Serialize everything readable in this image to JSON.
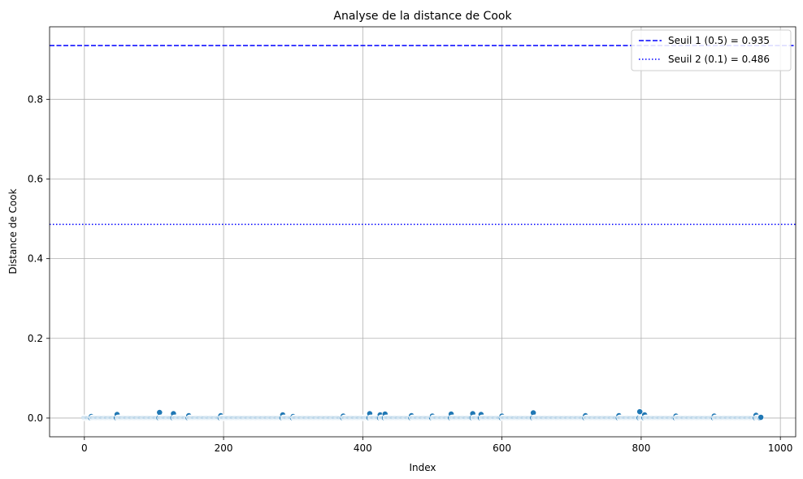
{
  "chart_data": {
    "type": "scatter",
    "title": "Analyse de la distance de Cook",
    "xlabel": "Index",
    "ylabel": "Distance de Cook",
    "xlim": [
      -50,
      1022
    ],
    "ylim": [
      -0.047,
      0.982
    ],
    "xticks": [
      0,
      200,
      400,
      600,
      800,
      1000
    ],
    "xtick_labels": [
      "0",
      "200",
      "400",
      "600",
      "800",
      "1000"
    ],
    "yticks": [
      0.0,
      0.2,
      0.4,
      0.6,
      0.8
    ],
    "ytick_labels": [
      "0.0",
      "0.2",
      "0.4",
      "0.6",
      "0.8"
    ],
    "grid": true,
    "legend_position": "top-right",
    "point_color": "#1f77b4",
    "n_points": 973,
    "baseline_value": 0.0005,
    "notable_points": [
      {
        "x": 10,
        "y": 0.004
      },
      {
        "x": 47,
        "y": 0.009
      },
      {
        "x": 108,
        "y": 0.014
      },
      {
        "x": 128,
        "y": 0.011
      },
      {
        "x": 150,
        "y": 0.006
      },
      {
        "x": 196,
        "y": 0.006
      },
      {
        "x": 285,
        "y": 0.008
      },
      {
        "x": 300,
        "y": 0.004
      },
      {
        "x": 372,
        "y": 0.005
      },
      {
        "x": 410,
        "y": 0.011
      },
      {
        "x": 425,
        "y": 0.008
      },
      {
        "x": 432,
        "y": 0.01
      },
      {
        "x": 470,
        "y": 0.006
      },
      {
        "x": 500,
        "y": 0.005
      },
      {
        "x": 527,
        "y": 0.01
      },
      {
        "x": 558,
        "y": 0.011
      },
      {
        "x": 570,
        "y": 0.009
      },
      {
        "x": 600,
        "y": 0.005
      },
      {
        "x": 645,
        "y": 0.013
      },
      {
        "x": 720,
        "y": 0.006
      },
      {
        "x": 768,
        "y": 0.006
      },
      {
        "x": 798,
        "y": 0.016
      },
      {
        "x": 805,
        "y": 0.008
      },
      {
        "x": 850,
        "y": 0.005
      },
      {
        "x": 905,
        "y": 0.005
      },
      {
        "x": 965,
        "y": 0.007
      },
      {
        "x": 972,
        "y": 0.002
      }
    ],
    "thresholds": [
      {
        "name": "Seuil 1 (0.5) = 0.935",
        "value": 0.935,
        "style": "dashed",
        "color": "#0000ff"
      },
      {
        "name": "Seuil 2 (0.1) = 0.486",
        "value": 0.486,
        "style": "dotted",
        "color": "#0000ff"
      }
    ]
  }
}
